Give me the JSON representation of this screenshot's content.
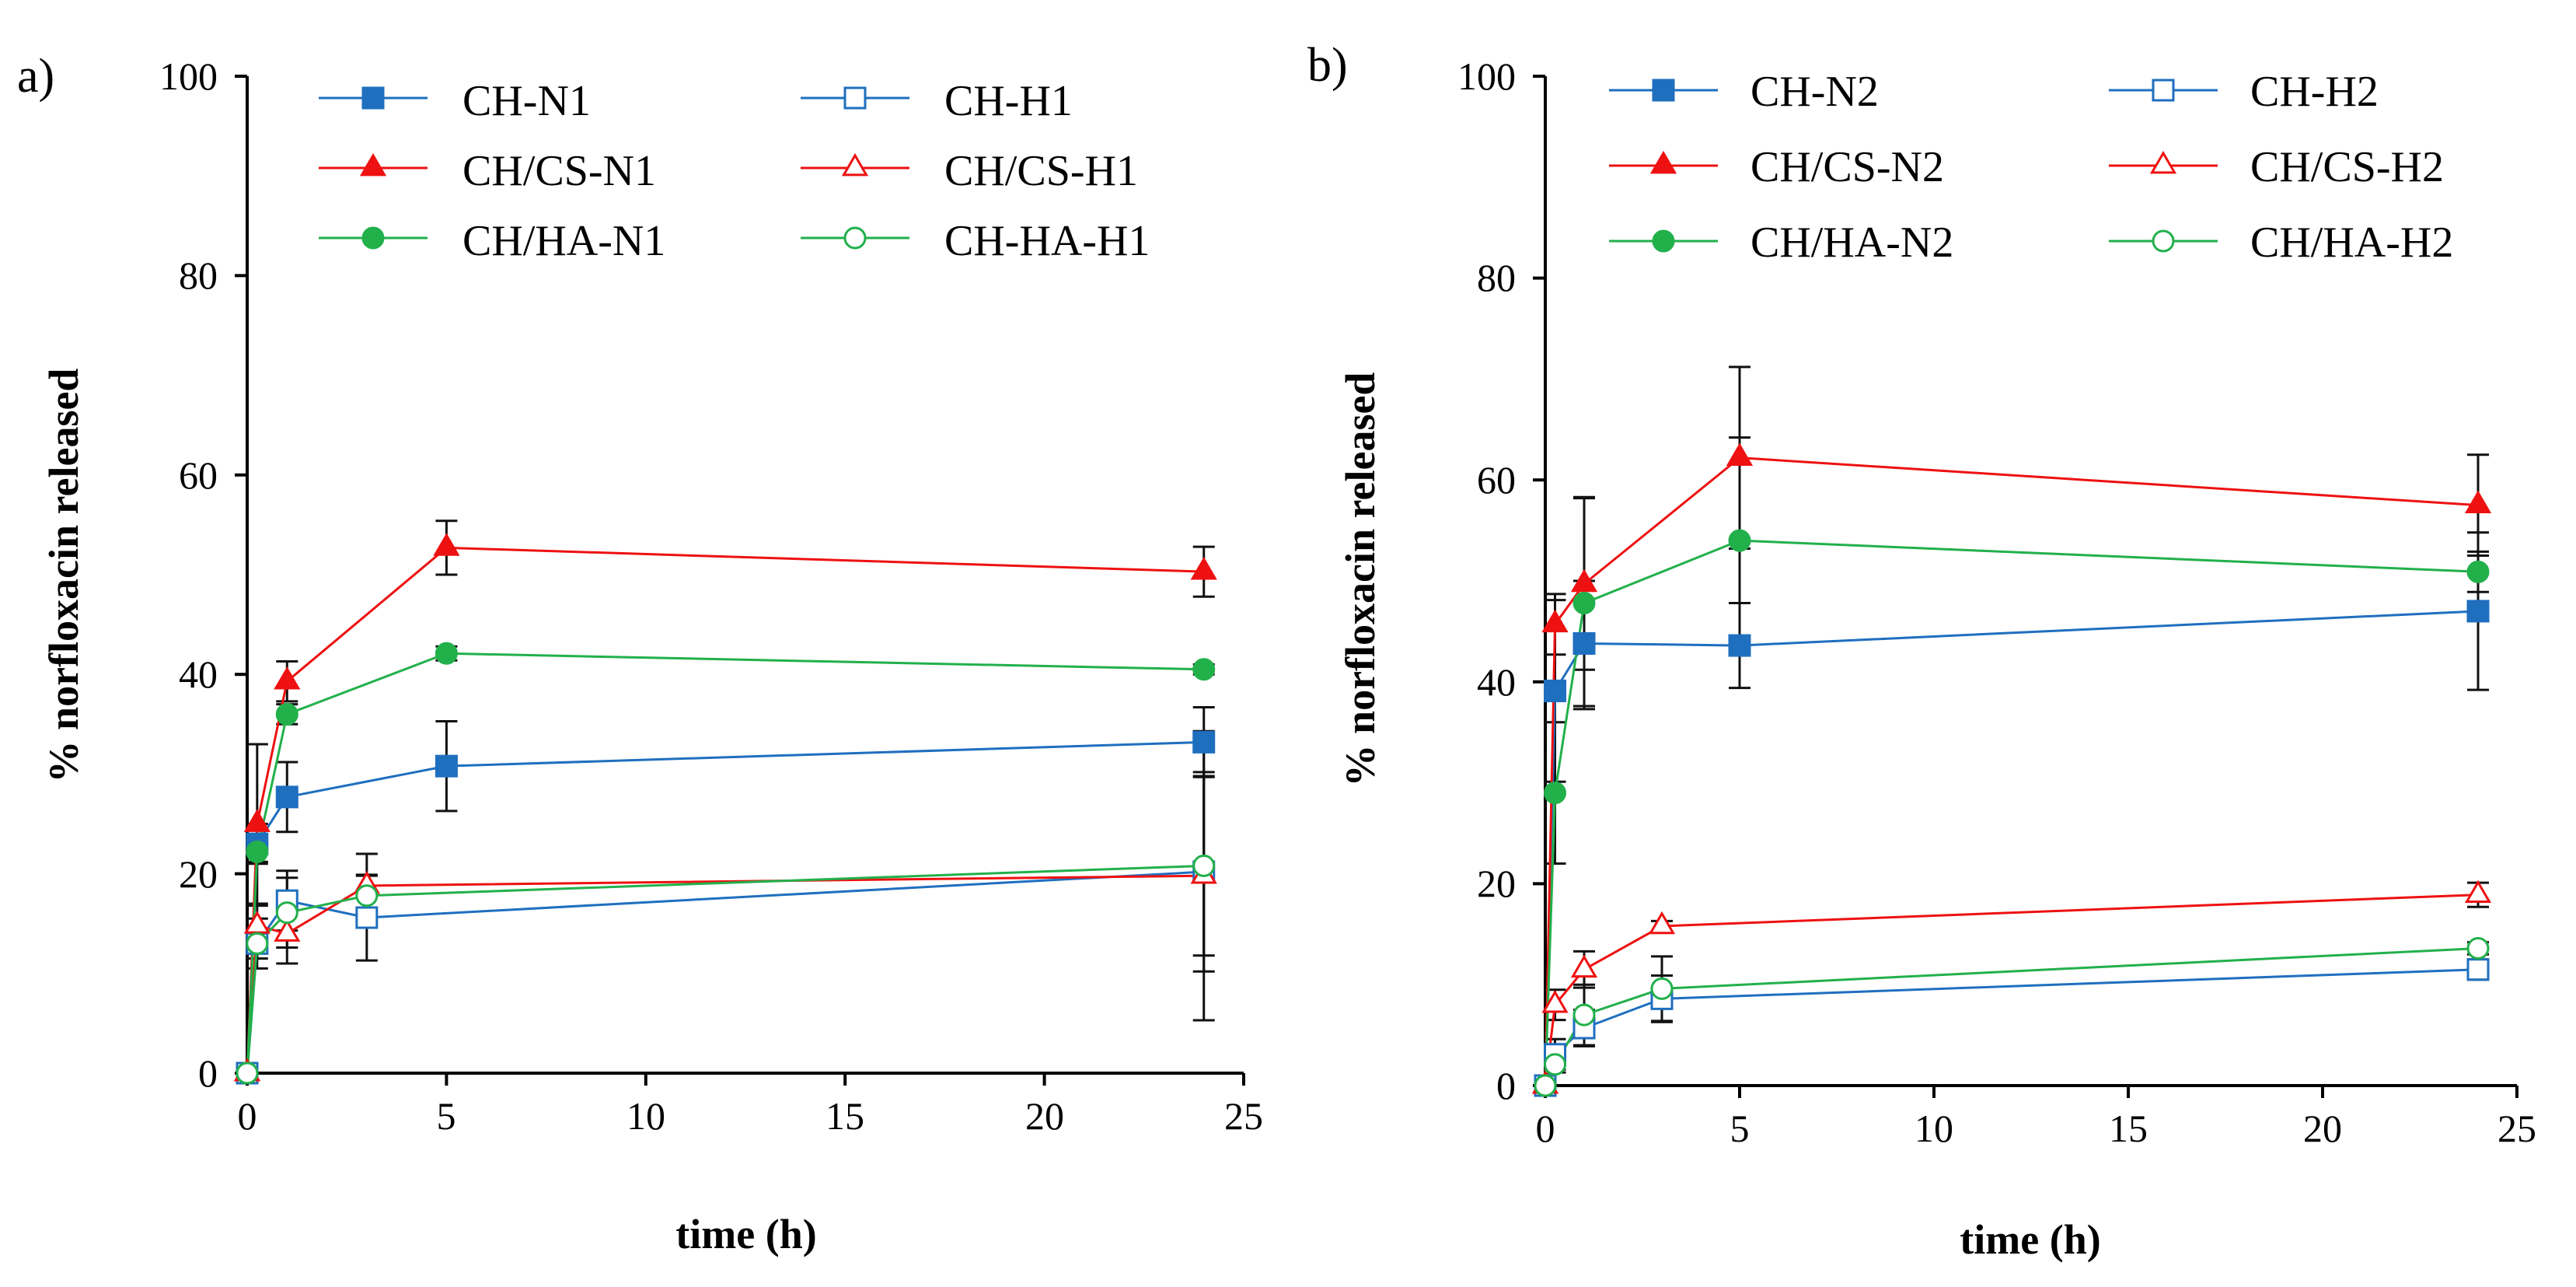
{
  "colors": {
    "blue": "#1f6fbf",
    "red": "#ee1111",
    "green": "#22b04b",
    "error_bar": "#111111",
    "axis": "#000000"
  },
  "chart_data": [
    {
      "type": "line",
      "panel_label": "a)",
      "xlabel": "time (h)",
      "ylabel": "% norfloxacin released",
      "xlim": [
        0,
        25
      ],
      "ylim": [
        0,
        100
      ],
      "xticks": [
        "0",
        "5",
        "10",
        "15",
        "20",
        "25"
      ],
      "yticks": [
        "0",
        "20",
        "40",
        "60",
        "80",
        "100"
      ],
      "legend_position": "top",
      "series": [
        {
          "name": "CH-N1",
          "color": "blue",
          "marker": "square",
          "filled": true,
          "x": [
            0,
            0.25,
            1,
            5,
            24
          ],
          "y": [
            0,
            23,
            27.7,
            30.8,
            33.2
          ],
          "err": [
            0,
            2,
            3.5,
            4.5,
            3.5
          ]
        },
        {
          "name": "CH-H1",
          "color": "blue",
          "marker": "square",
          "filled": false,
          "x": [
            0,
            0.25,
            1,
            3,
            24
          ],
          "y": [
            0,
            13,
            17.3,
            15.6,
            20.2
          ],
          "err": [
            0,
            2.5,
            3,
            4.3,
            10
          ]
        },
        {
          "name": "CH/CS-N1",
          "color": "red",
          "marker": "triangle",
          "filled": true,
          "x": [
            0,
            0.25,
            1,
            5,
            24
          ],
          "y": [
            0,
            25,
            39.3,
            52.7,
            50.3
          ],
          "err": [
            0,
            8,
            2,
            2.7,
            2.5
          ]
        },
        {
          "name": "CH/CS-H1",
          "color": "red",
          "marker": "triangle",
          "filled": false,
          "x": [
            0,
            0.25,
            1,
            3,
            24
          ],
          "y": [
            0,
            14.8,
            14,
            18.8,
            19.8
          ],
          "err": [
            0,
            2,
            3,
            3.2,
            14.5
          ]
        },
        {
          "name": "CH/HA-N1",
          "color": "green",
          "marker": "circle",
          "filled": true,
          "x": [
            0,
            0.25,
            1,
            5,
            24
          ],
          "y": [
            0,
            22.2,
            36,
            42.1,
            40.5
          ],
          "err": [
            0,
            1,
            1,
            0.7,
            0.5
          ]
        },
        {
          "name": "CH-HA-H1",
          "color": "green",
          "marker": "circle",
          "filled": false,
          "x": [
            0,
            0.25,
            1,
            3,
            24
          ],
          "y": [
            0,
            13,
            16.1,
            17.8,
            20.8
          ],
          "err": [
            0,
            1.5,
            3.5,
            2,
            9
          ]
        }
      ]
    },
    {
      "type": "line",
      "panel_label": "b)",
      "xlabel": "time (h)",
      "ylabel": "% norfloxacin released",
      "xlim": [
        0,
        25
      ],
      "ylim": [
        0,
        100
      ],
      "xticks": [
        "0",
        "5",
        "10",
        "15",
        "20",
        "25"
      ],
      "yticks": [
        "0",
        "20",
        "40",
        "60",
        "80",
        "100"
      ],
      "legend_position": "top",
      "series": [
        {
          "name": "CH-N2",
          "color": "blue",
          "marker": "square",
          "filled": true,
          "x": [
            0,
            0.25,
            1,
            5,
            24
          ],
          "y": [
            0,
            39.1,
            43.8,
            43.6,
            47
          ],
          "err": [
            0,
            9,
            6.2,
            4.2,
            7.8
          ]
        },
        {
          "name": "CH-H2",
          "color": "blue",
          "marker": "square",
          "filled": false,
          "x": [
            0,
            0.25,
            1,
            3,
            24
          ],
          "y": [
            0,
            3.1,
            5.7,
            8.6,
            11.5
          ],
          "err": [
            0,
            1.5,
            1.8,
            2.3,
            1
          ]
        },
        {
          "name": "CH/CS-N2",
          "color": "red",
          "marker": "triangle",
          "filled": true,
          "x": [
            0,
            0.25,
            1,
            5,
            24
          ],
          "y": [
            0,
            45.7,
            49.7,
            62.2,
            57.5
          ],
          "err": [
            0,
            3,
            8.5,
            9,
            5
          ]
        },
        {
          "name": "CH/CS-H2",
          "color": "red",
          "marker": "triangle",
          "filled": false,
          "x": [
            0,
            0.25,
            1,
            3,
            24
          ],
          "y": [
            0,
            8,
            11.5,
            15.8,
            18.9
          ],
          "err": [
            0,
            1.5,
            1.8,
            0.5,
            1.2
          ]
        },
        {
          "name": "CH/HA-N2",
          "color": "green",
          "marker": "circle",
          "filled": true,
          "x": [
            0,
            0.25,
            1,
            5,
            24
          ],
          "y": [
            0,
            29,
            47.8,
            54,
            50.9
          ],
          "err": [
            0,
            7,
            10.5,
            10.2,
            2
          ]
        },
        {
          "name": "CH/HA-H2",
          "color": "green",
          "marker": "circle",
          "filled": false,
          "x": [
            0,
            0.25,
            1,
            3,
            24
          ],
          "y": [
            0,
            2.1,
            7,
            9.6,
            13.6
          ],
          "err": [
            0,
            0.8,
            3,
            3.2,
            0.6
          ]
        }
      ]
    }
  ]
}
